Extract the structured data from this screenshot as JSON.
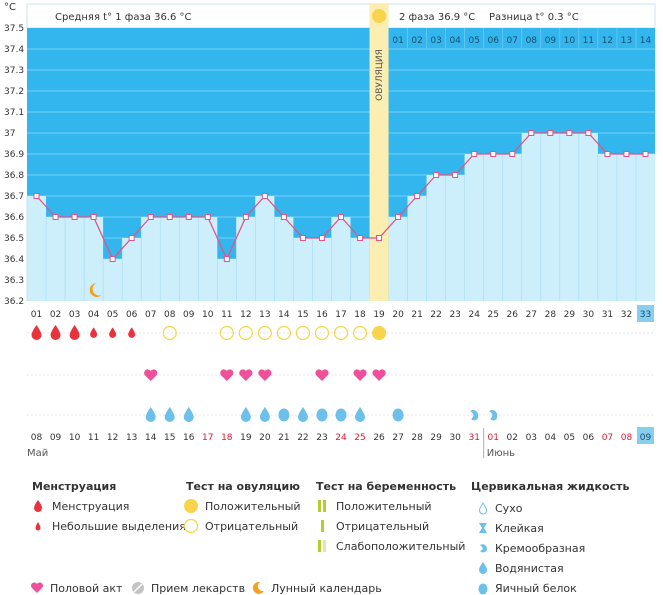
{
  "header": {
    "unit": "°C",
    "phase1_label": "Средняя t° 1 фаза",
    "phase1_value": "36.6 °C",
    "phase2_label": "2 фаза",
    "phase2_value": "36.9 °C",
    "diff_label": "Разница t°",
    "diff_value": "0.3 °C",
    "ovulation_label": "ОВУЛЯЦИЯ"
  },
  "chart_data": {
    "type": "line",
    "title": "Базальная температура",
    "ylim": [
      36.2,
      37.5
    ],
    "y_ticks": [
      "37.5",
      "37.4",
      "37.3",
      "37.2",
      "37.1",
      "37",
      "36.9",
      "36.8",
      "36.7",
      "36.6",
      "36.5",
      "36.4",
      "36.3",
      "36.2"
    ],
    "cycle_days": [
      "01",
      "02",
      "03",
      "04",
      "05",
      "06",
      "07",
      "08",
      "09",
      "10",
      "11",
      "12",
      "13",
      "14",
      "15",
      "16",
      "17",
      "18",
      "19",
      "20",
      "21",
      "22",
      "23",
      "24",
      "25",
      "26",
      "27",
      "28",
      "29",
      "30",
      "31",
      "32",
      "33"
    ],
    "phase2_days": [
      "01",
      "02",
      "03",
      "04",
      "05",
      "06",
      "07",
      "08",
      "09",
      "10",
      "11",
      "12",
      "13",
      "14"
    ],
    "temperatures": [
      36.7,
      36.6,
      36.6,
      36.6,
      36.4,
      36.5,
      36.6,
      36.6,
      36.6,
      36.6,
      36.4,
      36.6,
      36.7,
      36.6,
      36.5,
      36.5,
      36.6,
      36.5,
      36.5,
      36.6,
      36.7,
      36.8,
      36.8,
      36.9,
      36.9,
      36.9,
      37.0,
      37.0,
      37.0,
      37.0,
      36.9,
      36.9,
      36.9
    ],
    "ovulation_day": 19,
    "current_day": 33,
    "moon_day": 4,
    "menstruation": [
      3,
      3,
      3,
      2,
      2,
      2
    ],
    "ovulation_tests": {
      "negative": [
        8,
        11,
        12,
        13,
        14,
        15,
        16,
        17,
        18
      ],
      "positive": [
        19
      ]
    },
    "intercourse_days": [
      7,
      11,
      12,
      13,
      16,
      18,
      19
    ],
    "cervical_fluid": [
      {
        "day": 7,
        "type": "water"
      },
      {
        "day": 8,
        "type": "water"
      },
      {
        "day": 9,
        "type": "water"
      },
      {
        "day": 12,
        "type": "water"
      },
      {
        "day": 13,
        "type": "water"
      },
      {
        "day": 14,
        "type": "egg"
      },
      {
        "day": 15,
        "type": "water"
      },
      {
        "day": 16,
        "type": "egg"
      },
      {
        "day": 17,
        "type": "egg"
      },
      {
        "day": 18,
        "type": "water"
      },
      {
        "day": 20,
        "type": "egg"
      },
      {
        "day": 24,
        "type": "creamy"
      },
      {
        "day": 25,
        "type": "creamy"
      }
    ],
    "dates": [
      "08",
      "09",
      "10",
      "11",
      "12",
      "13",
      "14",
      "15",
      "16",
      "17",
      "18",
      "19",
      "20",
      "21",
      "22",
      "23",
      "24",
      "25",
      "26",
      "27",
      "28",
      "29",
      "30",
      "31",
      "01",
      "02",
      "03",
      "04",
      "05",
      "06",
      "07",
      "08",
      "09"
    ],
    "weekend_days": [
      10,
      11,
      17,
      18,
      24,
      25,
      31,
      32
    ],
    "month_start": "Май",
    "month_next": "Июнь",
    "month_next_day": 25
  },
  "legend": {
    "menstruation": {
      "title": "Менструация",
      "items": [
        "Менструация",
        "Небольшие выделения"
      ]
    },
    "ovulation_test": {
      "title": "Тест на овуляцию",
      "items": [
        "Положительный",
        "Отрицательный"
      ]
    },
    "pregnancy_test": {
      "title": "Тест на беременность",
      "items": [
        "Положительный",
        "Отрицательный",
        "Слабоположительный"
      ]
    },
    "cervical": {
      "title": "Цервикальная жидкость",
      "items": [
        "Сухо",
        "Клейкая",
        "Кремообразная",
        "Водянистая",
        "Яичный белок"
      ]
    },
    "bottom": [
      "Половой акт",
      "Прием лекарств",
      "Лунный календарь"
    ]
  },
  "colors": {
    "bg_dark": "#33b5ee",
    "fill_light": "#cdeffb",
    "line": "#e05585",
    "marker": "#f0a3bd",
    "ovulation_band": "#fbeeb0",
    "drop_red": "#e8333d",
    "heart": "#f04f9a",
    "drop_blue": "#6cc0ea",
    "yellow": "#f7d44a",
    "moon": "#f4a020",
    "weekend": "#e0182d"
  }
}
